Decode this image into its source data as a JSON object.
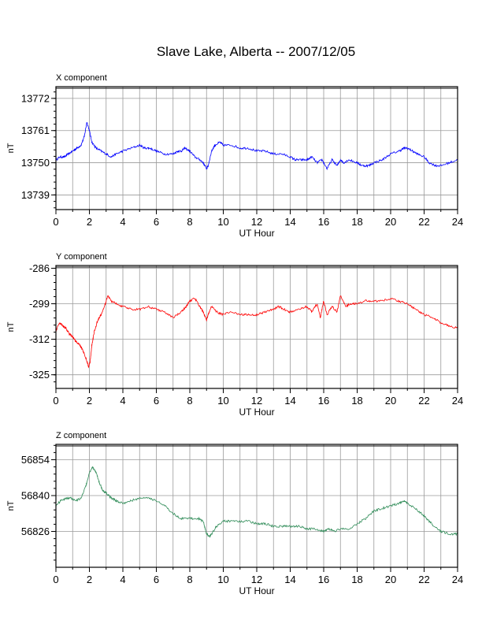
{
  "page": {
    "title": "Slave Lake, Alberta -- 2007/12/05"
  },
  "chart_data": [
    {
      "type": "line",
      "title": "X component",
      "xlabel": "UT Hour",
      "ylabel": "nT",
      "color": "#0000ff",
      "xlim": [
        0,
        24
      ],
      "ylim": [
        13734,
        13776
      ],
      "xticks": [
        0,
        2,
        4,
        6,
        8,
        10,
        12,
        14,
        16,
        18,
        20,
        22,
        24
      ],
      "yticks": [
        13739,
        13750,
        13761,
        13772
      ],
      "grid": true,
      "series": [
        {
          "x": [
            0,
            0.25,
            0.5,
            0.75,
            1,
            1.25,
            1.5,
            1.7,
            1.85,
            2,
            2.15,
            2.4,
            2.7,
            3,
            3.3,
            3.6,
            4,
            4.5,
            5,
            5.3,
            5.6,
            6,
            6.5,
            7,
            7.3,
            7.5,
            7.7,
            8,
            8.3,
            8.6,
            8.8,
            9,
            9.1,
            9.3,
            9.5,
            9.8,
            10,
            10.5,
            11,
            11.5,
            12,
            12.5,
            13,
            13.5,
            14,
            14.3,
            14.6,
            15,
            15.3,
            15.6,
            15.9,
            16.2,
            16.5,
            16.8,
            17,
            17.2,
            17.5,
            18,
            18.3,
            18.7,
            19,
            19.5,
            20,
            20.5,
            20.8,
            21,
            21.3,
            21.6,
            22,
            22.3,
            22.7,
            23,
            23.5,
            24
          ],
          "y": [
            13751,
            13752,
            13752,
            13753,
            13754,
            13755,
            13756,
            13759,
            13764,
            13761,
            13757,
            13755,
            13754,
            13753,
            13752,
            13753,
            13754,
            13755,
            13756,
            13755,
            13755,
            13754,
            13753,
            13753,
            13754,
            13754,
            13755,
            13754,
            13752,
            13751,
            13750,
            13748,
            13749,
            13754,
            13756,
            13757,
            13756,
            13756,
            13755,
            13755,
            13754,
            13754,
            13753,
            13753,
            13752,
            13751,
            13751,
            13751,
            13752,
            13750,
            13751,
            13748,
            13751,
            13749,
            13751,
            13750,
            13751,
            13750,
            13749,
            13749,
            13750,
            13751,
            13753,
            13754,
            13755,
            13755,
            13754,
            13753,
            13752,
            13750,
            13749,
            13749,
            13750,
            13751
          ]
        }
      ]
    },
    {
      "type": "line",
      "title": "Y component",
      "xlabel": "UT Hour",
      "ylabel": "nT",
      "color": "#ff0000",
      "xlim": [
        0,
        24
      ],
      "ylim": [
        -330,
        -285
      ],
      "xticks": [
        0,
        2,
        4,
        6,
        8,
        10,
        12,
        14,
        16,
        18,
        20,
        22,
        24
      ],
      "yticks": [
        -286,
        -299,
        -312,
        -325
      ],
      "grid": true,
      "series": [
        {
          "x": [
            0,
            0.2,
            0.4,
            0.6,
            0.8,
            1,
            1.2,
            1.4,
            1.6,
            1.8,
            1.95,
            2.05,
            2.15,
            2.3,
            2.5,
            2.7,
            2.9,
            3.1,
            3.3,
            3.6,
            4,
            4.5,
            5,
            5.5,
            6,
            6.5,
            7,
            7.5,
            7.8,
            8,
            8.3,
            8.6,
            8.8,
            9,
            9.1,
            9.3,
            9.6,
            10,
            10.5,
            11,
            11.5,
            12,
            12.5,
            13,
            13.3,
            13.6,
            14,
            14.5,
            15,
            15.3,
            15.6,
            15.8,
            16,
            16.2,
            16.5,
            16.8,
            17,
            17.3,
            17.6,
            18,
            18.5,
            19,
            19.5,
            20,
            20.5,
            21,
            21.5,
            22,
            22.5,
            23,
            23.5,
            24
          ],
          "y": [
            -309,
            -306,
            -307,
            -308,
            -310,
            -311,
            -313,
            -314,
            -316,
            -319,
            -322,
            -320,
            -314,
            -309,
            -305,
            -303,
            -300,
            -296,
            -298,
            -299,
            -300,
            -301,
            -301,
            -300,
            -301,
            -302,
            -304,
            -302,
            -300,
            -298,
            -297,
            -300,
            -302,
            -305,
            -303,
            -300,
            -302,
            -303,
            -302,
            -303,
            -303,
            -303,
            -302,
            -301,
            -300,
            -301,
            -302,
            -301,
            -300,
            -302,
            -299,
            -304,
            -298,
            -303,
            -300,
            -302,
            -296,
            -300,
            -299,
            -299,
            -298,
            -298,
            -298,
            -297,
            -298,
            -299,
            -301,
            -303,
            -304,
            -306,
            -307,
            -308
          ]
        }
      ]
    },
    {
      "type": "line",
      "title": "Z component",
      "xlabel": "UT Hour",
      "ylabel": "nT",
      "color": "#2e8b57",
      "xlim": [
        0,
        24
      ],
      "ylim": [
        56812,
        56860
      ],
      "xticks": [
        0,
        2,
        4,
        6,
        8,
        10,
        12,
        14,
        16,
        18,
        20,
        22,
        24
      ],
      "yticks": [
        56826,
        56840,
        56854
      ],
      "grid": true,
      "series": [
        {
          "x": [
            0,
            0.3,
            0.6,
            0.9,
            1.2,
            1.5,
            1.8,
            2,
            2.2,
            2.4,
            2.6,
            2.8,
            3,
            3.3,
            3.6,
            4,
            4.5,
            5,
            5.5,
            6,
            6.5,
            7,
            7.5,
            8,
            8.5,
            8.8,
            9,
            9.2,
            9.4,
            9.6,
            10,
            10.5,
            11,
            11.5,
            12,
            12.5,
            13,
            13.5,
            14,
            14.5,
            15,
            15.5,
            16,
            16.3,
            16.6,
            17,
            17.5,
            18,
            18.5,
            19,
            19.5,
            20,
            20.5,
            20.8,
            21,
            21.5,
            22,
            22.3,
            22.6,
            23,
            23.5,
            24
          ],
          "y": [
            56836,
            56838,
            56839,
            56839,
            56838,
            56839,
            56844,
            56849,
            56851,
            56849,
            56845,
            56842,
            56841,
            56839,
            56838,
            56837,
            56838,
            56839,
            56839,
            56838,
            56836,
            56833,
            56831,
            56831,
            56831,
            56830,
            56825,
            56824,
            56826,
            56828,
            56830,
            56830,
            56830,
            56830,
            56829,
            56829,
            56828,
            56828,
            56828,
            56828,
            56827,
            56827,
            56826,
            56827,
            56826,
            56827,
            56827,
            56829,
            56831,
            56834,
            56835,
            56836,
            56837,
            56838,
            56837,
            56835,
            56832,
            56830,
            56828,
            56826,
            56825,
            56825
          ]
        }
      ]
    }
  ]
}
